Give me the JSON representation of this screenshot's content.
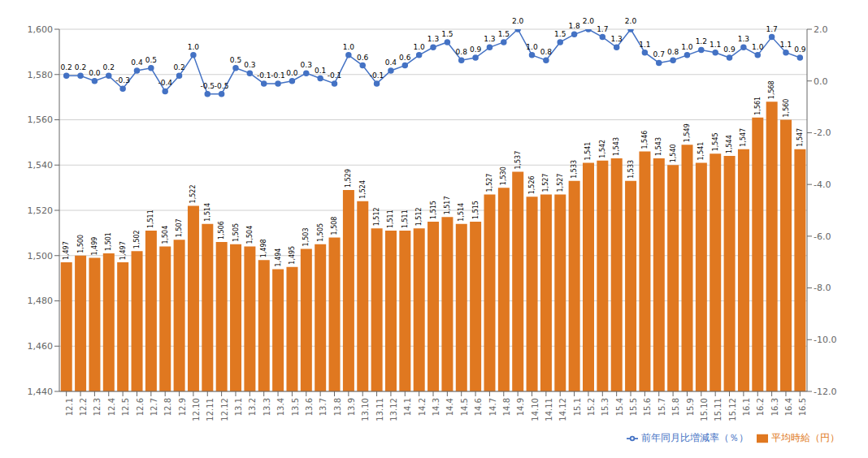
{
  "chart_data": {
    "type": "bar",
    "categories": [
      "12.1",
      "12.2",
      "12.3",
      "12.4",
      "12.5",
      "12.6",
      "12.7",
      "12.8",
      "12.9",
      "12.10",
      "12.11",
      "12.12",
      "13.1",
      "13.2",
      "13.3",
      "13.4",
      "13.5",
      "13.6",
      "13.7",
      "13.8",
      "13.9",
      "13.10",
      "13.11",
      "13.12",
      "14.1",
      "14.2",
      "14.3",
      "14.4",
      "14.5",
      "14.6",
      "14.7",
      "14.8",
      "14.9",
      "14.10",
      "14.11",
      "14.12",
      "15.1",
      "15.2",
      "15.3",
      "15.4",
      "15.5",
      "15.6",
      "15.7",
      "15.8",
      "15.9",
      "15.10",
      "15.11",
      "15.12",
      "16.1",
      "16.2",
      "16.3",
      "16.4",
      "16.5"
    ],
    "series": [
      {
        "name": "平均時給（円）",
        "type": "bar",
        "color": "#E07820",
        "values": [
          1497,
          1500,
          1499,
          1501,
          1497,
          1502,
          1511,
          1504,
          1507,
          1522,
          1514,
          1506,
          1505,
          1504,
          1498,
          1494,
          1495,
          1503,
          1505,
          1508,
          1529,
          1524,
          1512,
          1511,
          1511,
          1512,
          1515,
          1517,
          1514,
          1515,
          1527,
          1530,
          1537,
          1526,
          1527,
          1527,
          1533,
          1541,
          1542,
          1543,
          1533,
          1546,
          1543,
          1540,
          1549,
          1541,
          1545,
          1544,
          1547,
          1561,
          1568,
          1560,
          1547
        ],
        "value_labels": [
          "1,497",
          "1,500",
          "1,499",
          "1,501",
          "1,497",
          "1,502",
          "1,511",
          "1,504",
          "1,507",
          "1,522",
          "1,514",
          "1,506",
          "1,505",
          "1,504",
          "1,498",
          "1,494",
          "1,495",
          "1,503",
          "1,505",
          "1,508",
          "1,529",
          "1,524",
          "1,512",
          "1,511",
          "1,511",
          "1,512",
          "1,515",
          "1,517",
          "1,514",
          "1,515",
          "1,527",
          "1,530",
          "1,537",
          "1,526",
          "1,527",
          "1,527",
          "1,533",
          "1,541",
          "1,542",
          "1,543",
          "1,533",
          "1,546",
          "1,543",
          "1,540",
          "1,549",
          "1,541",
          "1,545",
          "1,544",
          "1,547",
          "1,561",
          "1,568",
          "1,560",
          "1,547"
        ]
      },
      {
        "name": "前年同月比増減率（％）",
        "type": "line",
        "color": "#4472C4",
        "marker": "circle",
        "axis": "y2",
        "values": [
          0.2,
          0.2,
          0.0,
          0.2,
          -0.3,
          0.4,
          0.5,
          -0.4,
          0.2,
          1.0,
          -0.5,
          -0.5,
          0.5,
          0.3,
          -0.1,
          -0.1,
          0.0,
          0.3,
          0.1,
          -0.1,
          1.0,
          0.6,
          -0.1,
          0.4,
          0.6,
          1.0,
          1.3,
          1.5,
          0.8,
          0.9,
          1.3,
          1.5,
          2.0,
          1.0,
          0.8,
          1.5,
          1.8,
          2.0,
          1.7,
          1.3,
          2.0,
          1.1,
          0.7,
          0.8,
          1.0,
          1.2,
          1.1,
          0.9,
          1.3,
          1.0,
          1.7,
          1.1,
          0.9
        ],
        "value_labels": [
          "0.2",
          "0.2",
          "0.0",
          "0.2",
          "-0.3",
          "0.4",
          "0.5",
          "-0.4",
          "0.2",
          "1.0",
          "-0.5",
          "-0.5",
          "0.5",
          "0.3",
          "-0.1",
          "-0.1",
          "0.0",
          "0.3",
          "0.1",
          "-0.1",
          "1.0",
          "0.6",
          "-0.1",
          "0.4",
          "0.6",
          "1.0",
          "1.3",
          "1.5",
          "0.8",
          "0.9",
          "1.3",
          "1.5",
          "2.0",
          "1.0",
          "0.8",
          "1.5",
          "1.8",
          "2.0",
          "1.7",
          "1.3",
          "2.0",
          "1.1",
          "0.7",
          "0.8",
          "1.0",
          "1.2",
          "1.1",
          "0.9",
          "1.3",
          "1.0",
          "1.7",
          "1.1",
          "0.9"
        ]
      }
    ],
    "ylim": [
      1440,
      1600
    ],
    "yticks": [
      {
        "value": 1440,
        "label": "1,440"
      },
      {
        "value": 1460,
        "label": "1,460"
      },
      {
        "value": 1480,
        "label": "1,480"
      },
      {
        "value": 1500,
        "label": "1,500"
      },
      {
        "value": 1520,
        "label": "1,520"
      },
      {
        "value": 1540,
        "label": "1,540"
      },
      {
        "value": 1560,
        "label": "1,560"
      },
      {
        "value": 1580,
        "label": "1,580"
      },
      {
        "value": 1600,
        "label": "1,600"
      }
    ],
    "y2lim": [
      -12.0,
      2.0
    ],
    "y2ticks": [
      {
        "value": -12.0,
        "label": "-12.0"
      },
      {
        "value": -10.0,
        "label": "-10.0"
      },
      {
        "value": -8.0,
        "label": "-8.0"
      },
      {
        "value": -6.0,
        "label": "-6.0"
      },
      {
        "value": -4.0,
        "label": "-4.0"
      },
      {
        "value": -2.0,
        "label": "-2.0"
      },
      {
        "value": 0.0,
        "label": "0.0"
      },
      {
        "value": 2.0,
        "label": "2.0"
      }
    ],
    "grid": true,
    "legend": "lower right",
    "data_labels": true
  }
}
